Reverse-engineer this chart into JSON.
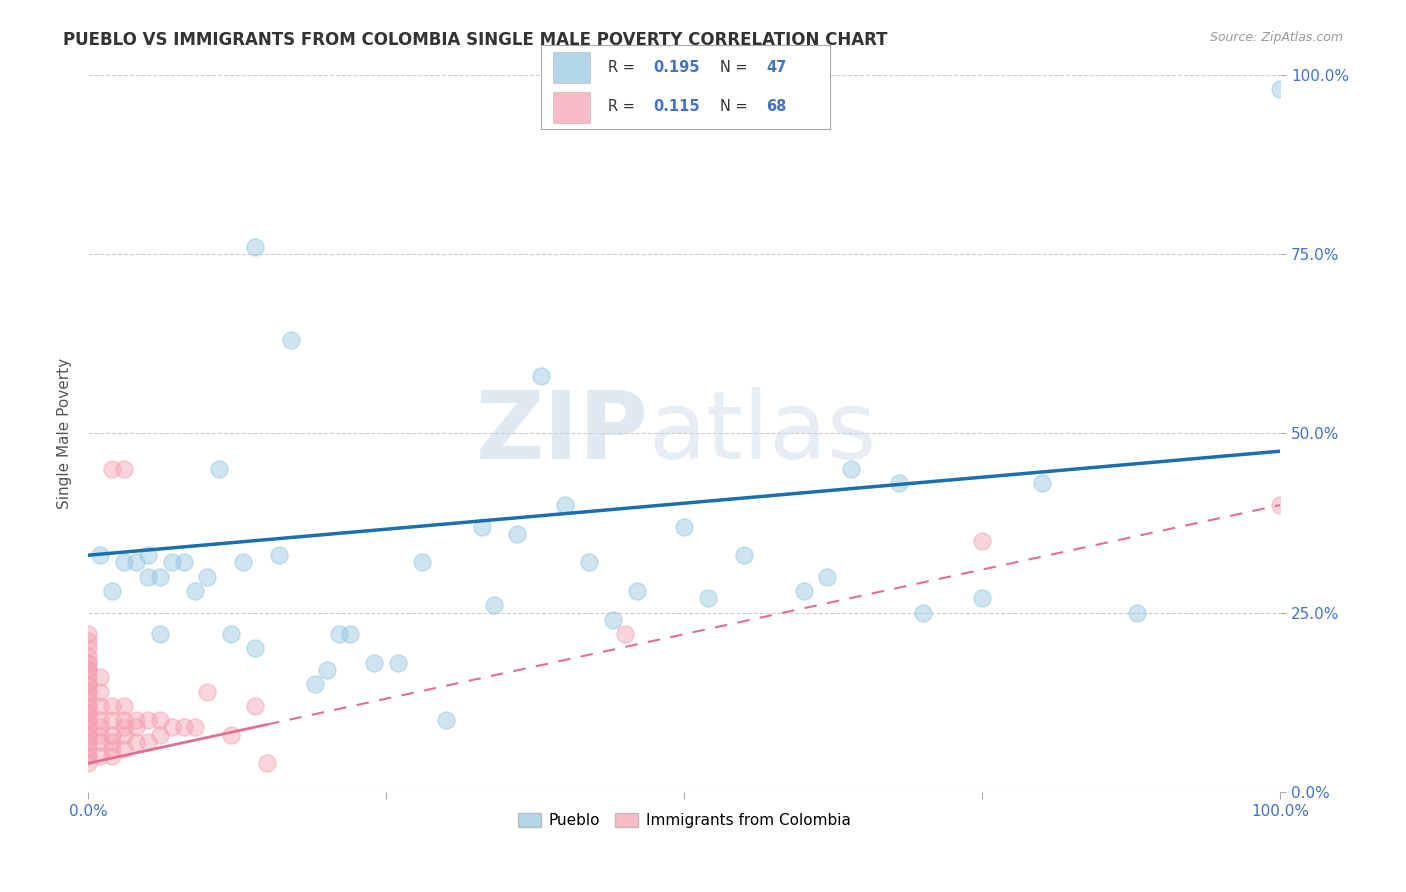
{
  "title": "PUEBLO VS IMMIGRANTS FROM COLOMBIA SINGLE MALE POVERTY CORRELATION CHART",
  "source": "Source: ZipAtlas.com",
  "ylabel": "Single Male Poverty",
  "xlim": [
    0,
    1.0
  ],
  "ylim": [
    0,
    1.0
  ],
  "xticks": [
    0.0,
    0.25,
    0.5,
    0.75,
    1.0
  ],
  "yticks": [
    0.0,
    0.25,
    0.5,
    0.75,
    1.0
  ],
  "xticklabels": [
    "0.0%",
    "",
    "",
    "",
    "100.0%"
  ],
  "yticklabels": [
    "0.0%",
    "25.0%",
    "50.0%",
    "75.0%",
    "100.0%"
  ],
  "blue_color": "#93c6e0",
  "pink_color": "#f4a0b0",
  "blue_line_color": "#1a6faf",
  "pink_line_color": "#e07090",
  "blue_R": 0.195,
  "pink_R": 0.115,
  "watermark_zip": "ZIP",
  "watermark_atlas": "atlas",
  "pueblo_x": [
    0.01,
    0.02,
    0.03,
    0.04,
    0.05,
    0.05,
    0.06,
    0.06,
    0.07,
    0.08,
    0.09,
    0.1,
    0.11,
    0.12,
    0.13,
    0.14,
    0.16,
    0.17,
    0.19,
    0.2,
    0.21,
    0.22,
    0.24,
    0.26,
    0.28,
    0.3,
    0.33,
    0.34,
    0.36,
    0.38,
    0.4,
    0.42,
    0.44,
    0.46,
    0.5,
    0.52,
    0.55,
    0.6,
    0.62,
    0.64,
    0.68,
    0.7,
    0.75,
    0.8,
    0.88,
    1.0,
    0.14
  ],
  "pueblo_y": [
    0.33,
    0.28,
    0.32,
    0.32,
    0.33,
    0.3,
    0.3,
    0.22,
    0.32,
    0.32,
    0.28,
    0.3,
    0.45,
    0.22,
    0.32,
    0.2,
    0.33,
    0.63,
    0.15,
    0.17,
    0.22,
    0.22,
    0.18,
    0.18,
    0.32,
    0.1,
    0.37,
    0.26,
    0.36,
    0.58,
    0.4,
    0.32,
    0.24,
    0.28,
    0.37,
    0.27,
    0.33,
    0.28,
    0.3,
    0.45,
    0.43,
    0.25,
    0.27,
    0.43,
    0.25,
    0.98,
    0.76
  ],
  "colombia_x": [
    0.0,
    0.0,
    0.0,
    0.0,
    0.0,
    0.0,
    0.0,
    0.0,
    0.0,
    0.0,
    0.0,
    0.0,
    0.0,
    0.0,
    0.0,
    0.0,
    0.0,
    0.0,
    0.0,
    0.0,
    0.0,
    0.0,
    0.0,
    0.0,
    0.0,
    0.0,
    0.0,
    0.0,
    0.0,
    0.0,
    0.01,
    0.01,
    0.01,
    0.01,
    0.01,
    0.01,
    0.01,
    0.01,
    0.02,
    0.02,
    0.02,
    0.02,
    0.02,
    0.02,
    0.02,
    0.03,
    0.03,
    0.03,
    0.03,
    0.03,
    0.03,
    0.04,
    0.04,
    0.04,
    0.05,
    0.05,
    0.06,
    0.06,
    0.07,
    0.08,
    0.09,
    0.1,
    0.12,
    0.14,
    0.15,
    0.45,
    0.75,
    1.0
  ],
  "colombia_y": [
    0.04,
    0.05,
    0.05,
    0.06,
    0.07,
    0.07,
    0.08,
    0.08,
    0.09,
    0.09,
    0.1,
    0.1,
    0.11,
    0.11,
    0.12,
    0.12,
    0.13,
    0.14,
    0.14,
    0.15,
    0.15,
    0.16,
    0.17,
    0.17,
    0.18,
    0.18,
    0.19,
    0.2,
    0.21,
    0.22,
    0.05,
    0.07,
    0.08,
    0.09,
    0.1,
    0.12,
    0.14,
    0.16,
    0.05,
    0.06,
    0.07,
    0.08,
    0.1,
    0.12,
    0.45,
    0.06,
    0.08,
    0.09,
    0.1,
    0.12,
    0.45,
    0.07,
    0.09,
    0.1,
    0.07,
    0.1,
    0.08,
    0.1,
    0.09,
    0.09,
    0.09,
    0.14,
    0.08,
    0.12,
    0.04,
    0.22,
    0.35,
    0.4
  ],
  "background_color": "#ffffff",
  "grid_color": "#cccccc",
  "title_color": "#333333",
  "axis_color": "#4472c4",
  "tick_color": "#4472c4"
}
